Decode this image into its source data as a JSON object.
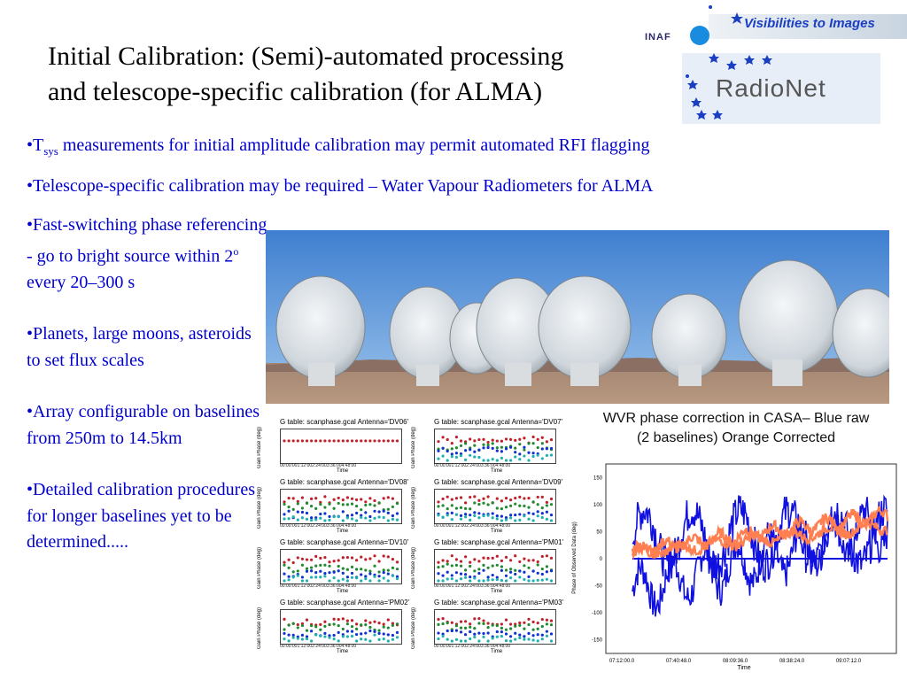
{
  "title": {
    "line1": "Initial Calibration: (Semi)-automated processing",
    "line2": "and telescope-specific calibration (for ALMA)"
  },
  "logo": {
    "tagline": "Visibilities to Images",
    "inaf": "INAF",
    "radionet": "RadioNet"
  },
  "bullets": {
    "b1_prefix": "•T",
    "b1_sub": "sys",
    "b1_rest": " measurements for initial amplitude calibration may permit automated RFI flagging",
    "b2": "•Telescope-specific calibration may be required – Water Vapour Radiometers for ALMA",
    "b3_part1": "•Fast-switching phase referencing  - go to bright source within 2",
    "b3_sup": "o",
    "b3_part2": "  every 20–300 s",
    "b4": "•Planets, large moons, asteroids to set flux scales",
    "b5": "•Array configurable on baselines from 250m to 14.5km",
    "b6": "•Detailed calibration procedures for longer baselines yet to be determined....."
  },
  "plots": [
    {
      "title": "G table: scanphase.gcal     Antenna='DV06'",
      "ylabel": "Gain Phase (deg)",
      "xticks": "00:00:001:12:002:24:003:36:004:48:00",
      "xlabel": "Time"
    },
    {
      "title": "G table: scanphase.gcal     Antenna='DV07'",
      "ylabel": "Gain Phase (deg)",
      "xticks": "00:00:001:12:002:24:003:36:004:48:00",
      "xlabel": "Time"
    },
    {
      "title": "G table: scanphase.gcal     Antenna='DV08'",
      "ylabel": "Gain Phase (deg)",
      "xticks": "00:00:001:12:002:24:003:36:004:48:00",
      "xlabel": "Time"
    },
    {
      "title": "G table: scanphase.gcal     Antenna='DV09'",
      "ylabel": "Gain Phase (deg)",
      "xticks": "00:00:001:12:002:24:003:36:004:48:00",
      "xlabel": "Time"
    },
    {
      "title": "G table: scanphase.gcal     Antenna='DV10'",
      "ylabel": "Gain Phase (deg)",
      "xticks": "00:00:001:12:002:24:003:36:004:48:00",
      "xlabel": "Time"
    },
    {
      "title": "G table: scanphase.gcal     Antenna='PM01'",
      "ylabel": "Gain Phase (deg)",
      "xticks": "00:00:001:12:002:24:003:36:004:48:00",
      "xlabel": "Time"
    },
    {
      "title": "G table: scanphase.gcal     Antenna='PM02'",
      "ylabel": "Gain Phase (deg)",
      "xticks": "00:00:001:12:002:24:003:36:004:48:00",
      "xlabel": "Time"
    },
    {
      "title": "G table: scanphase.gcal     Antenna='PM03'",
      "ylabel": "Gain Phase (deg)",
      "xticks": "00:00:001:12:002:24:003:36:004:48:00",
      "xlabel": "Time"
    }
  ],
  "wvr": {
    "title_line1": "WVR phase correction in CASA– Blue raw",
    "title_line2": "(2 baselines)  Orange Corrected",
    "ylabel": "Phase of Observed Data  (deg)",
    "xlabel": "Time",
    "yticks": [
      "150",
      "100",
      "50",
      "0",
      "-50",
      "-100",
      "-150"
    ],
    "xticks": [
      "07:12:00.0",
      "07:40:48.0",
      "08:09:36.0",
      "08:38:24.0",
      "09:07:12.0"
    ],
    "colors": {
      "raw": "#1010e0",
      "corrected": "#ff7f50"
    }
  },
  "colors": {
    "bullet_text": "#0000cc",
    "tagline": "#1a3fc2"
  }
}
